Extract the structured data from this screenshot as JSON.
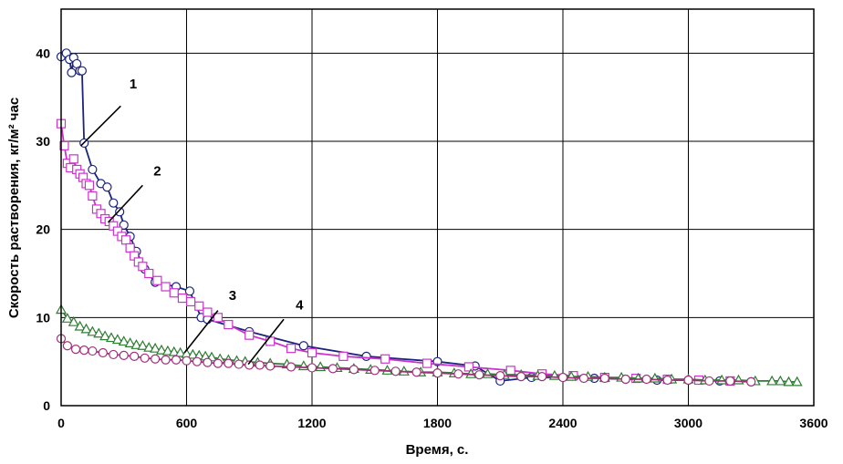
{
  "chart_data": {
    "type": "line",
    "xlabel": "Время, с.",
    "ylabel": "Скорость растворения, кг/м² час",
    "xlim": [
      0,
      3600
    ],
    "ylim": [
      0,
      45
    ],
    "xticks": [
      "0",
      "600",
      "1200",
      "1800",
      "2400",
      "3000",
      "3600"
    ],
    "yticks": [
      "0",
      "10",
      "20",
      "30",
      "40"
    ],
    "grid": true,
    "legend": "none",
    "series": [
      {
        "label": "1",
        "color": "#1a237e",
        "marker": "circle",
        "x": [
          0,
          25,
          40,
          50,
          60,
          75,
          90,
          100,
          110,
          150,
          190,
          220,
          250,
          280,
          300,
          330,
          360,
          400,
          450,
          550,
          615,
          670,
          700,
          900,
          1160,
          1460,
          1800,
          1980,
          2100,
          2250,
          2400,
          2550,
          2700,
          2850,
          3000,
          3150,
          3300
        ],
        "y": [
          39.6,
          40.0,
          39.3,
          37.8,
          39.5,
          38.8,
          38.0,
          38.0,
          29.8,
          26.8,
          25.2,
          24.8,
          23.0,
          22.0,
          20.5,
          19.2,
          17.5,
          15.5,
          14.0,
          13.5,
          13.0,
          10.0,
          9.8,
          8.4,
          6.8,
          5.6,
          5.0,
          4.5,
          2.8,
          3.2,
          3.2,
          3.1,
          3.0,
          2.9,
          2.9,
          2.8,
          2.7
        ]
      },
      {
        "label": "2",
        "color": "#cc33cc",
        "marker": "square",
        "x": [
          0,
          15,
          30,
          45,
          60,
          75,
          90,
          105,
          120,
          135,
          150,
          170,
          190,
          210,
          230,
          250,
          270,
          290,
          310,
          330,
          350,
          370,
          390,
          420,
          460,
          500,
          540,
          580,
          620,
          660,
          700,
          750,
          800,
          900,
          1000,
          1100,
          1200,
          1350,
          1550,
          1750,
          1950,
          2150,
          2300,
          2450,
          2600,
          2750,
          2900,
          3050,
          3200
        ],
        "y": [
          32.0,
          29.5,
          27.5,
          27.0,
          28.0,
          26.8,
          26.3,
          25.9,
          25.2,
          25.0,
          23.8,
          22.3,
          21.8,
          21.2,
          20.9,
          20.4,
          19.8,
          19.2,
          18.8,
          17.9,
          17.0,
          16.3,
          15.8,
          15.0,
          14.2,
          13.5,
          12.8,
          12.2,
          11.8,
          11.3,
          10.6,
          10.0,
          9.2,
          8.0,
          7.3,
          6.5,
          6.0,
          5.6,
          5.3,
          4.8,
          4.4,
          4.0,
          3.6,
          3.4,
          3.2,
          3.1,
          3.0,
          2.9,
          2.8
        ]
      },
      {
        "label": "3",
        "color": "#2e7d32",
        "marker": "triangle",
        "x": [
          0,
          30,
          60,
          90,
          120,
          150,
          180,
          210,
          240,
          270,
          300,
          330,
          360,
          390,
          420,
          450,
          480,
          510,
          540,
          570,
          600,
          630,
          660,
          690,
          720,
          760,
          800,
          840,
          880,
          940,
          1000,
          1080,
          1160,
          1240,
          1320,
          1400,
          1480,
          1560,
          1640,
          1720,
          1800,
          1880,
          1960,
          2040,
          2120,
          2200,
          2280,
          2360,
          2440,
          2520,
          2600,
          2680,
          2760,
          2840,
          2920,
          3000,
          3080,
          3160,
          3240,
          3320,
          3400,
          3440,
          3480,
          3520
        ],
        "y": [
          10.9,
          9.9,
          9.5,
          9.0,
          8.7,
          8.4,
          8.2,
          7.9,
          7.7,
          7.5,
          7.3,
          7.1,
          6.9,
          6.8,
          6.6,
          6.5,
          6.3,
          6.2,
          6.1,
          6.0,
          5.9,
          5.8,
          5.7,
          5.6,
          5.5,
          5.3,
          5.2,
          5.1,
          5.0,
          4.9,
          4.8,
          4.7,
          4.5,
          4.4,
          4.3,
          4.2,
          4.1,
          4.0,
          3.9,
          3.8,
          3.8,
          3.7,
          3.6,
          3.6,
          3.5,
          3.5,
          3.4,
          3.4,
          3.3,
          3.3,
          3.2,
          3.2,
          3.1,
          3.1,
          3.0,
          3.0,
          2.9,
          2.9,
          2.9,
          2.8,
          2.8,
          2.8,
          2.7,
          2.7
        ]
      },
      {
        "label": "4",
        "color": "#a0307a",
        "marker": "circle",
        "x": [
          0,
          30,
          70,
          110,
          150,
          200,
          250,
          300,
          350,
          400,
          450,
          500,
          550,
          600,
          650,
          700,
          750,
          800,
          850,
          900,
          950,
          1000,
          1100,
          1200,
          1300,
          1400,
          1500,
          1600,
          1700,
          1800,
          1900,
          2000,
          2100,
          2200,
          2300,
          2400,
          2500,
          2600,
          2700,
          2800,
          2900,
          3000,
          3100,
          3200,
          3300
        ],
        "y": [
          7.6,
          6.8,
          6.4,
          6.3,
          6.2,
          6.0,
          5.8,
          5.7,
          5.6,
          5.4,
          5.3,
          5.2,
          5.2,
          5.1,
          5.0,
          4.9,
          4.8,
          4.8,
          4.7,
          4.6,
          4.6,
          4.5,
          4.4,
          4.3,
          4.2,
          4.1,
          4.0,
          3.9,
          3.8,
          3.7,
          3.6,
          3.5,
          3.4,
          3.3,
          3.3,
          3.2,
          3.1,
          3.1,
          3.0,
          3.0,
          2.9,
          2.9,
          2.8,
          2.8,
          2.7
        ]
      }
    ],
    "callouts": [
      {
        "label": "1",
        "text_at": [
          345,
          36.0
        ],
        "from": [
          285,
          34.0
        ],
        "to": [
          95,
          29.5
        ]
      },
      {
        "label": "2",
        "text_at": [
          460,
          26.1
        ],
        "from": [
          390,
          25.0
        ],
        "to": [
          225,
          20.8
        ]
      },
      {
        "label": "3",
        "text_at": [
          820,
          12.0
        ],
        "from": [
          750,
          10.8
        ],
        "to": [
          590,
          6.0
        ]
      },
      {
        "label": "4",
        "text_at": [
          1140,
          10.9
        ],
        "from": [
          1065,
          9.8
        ],
        "to": [
          895,
          4.7
        ]
      }
    ]
  }
}
